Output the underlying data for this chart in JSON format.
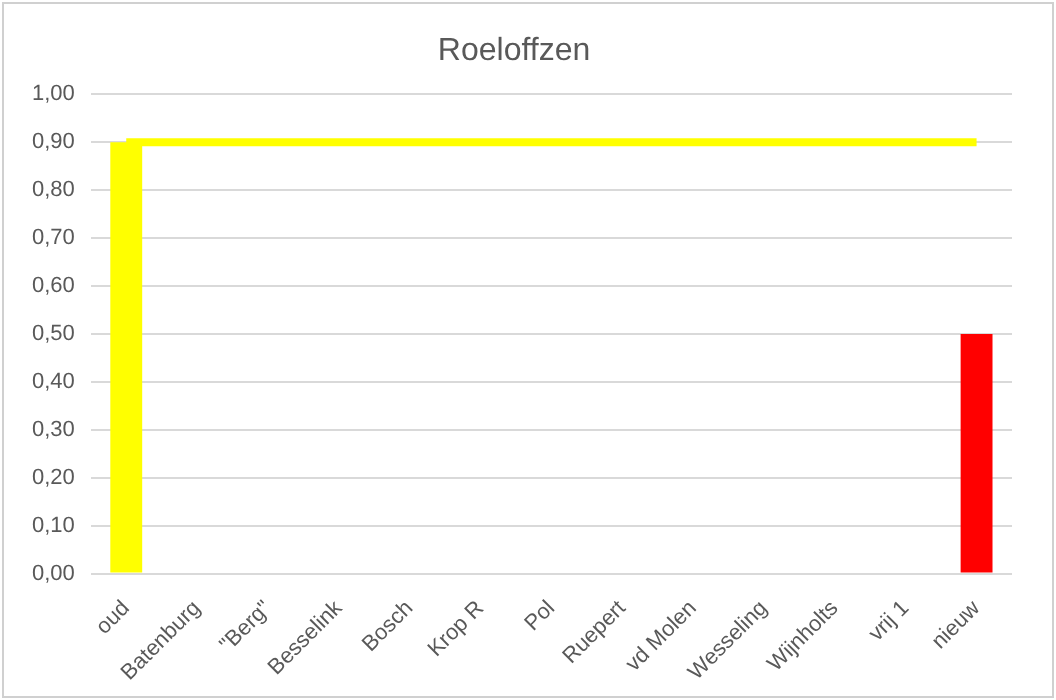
{
  "chart_data": {
    "type": "bar",
    "title": "Roeloffzen",
    "categories": [
      "oud",
      "Batenburg",
      "\"Berg\"",
      "Besselink",
      "Bosch",
      "Krop R",
      "Pol",
      "Ruepert",
      "vd Molen",
      "Wesseling",
      "Wijnholts",
      "vrij 1",
      "nieuw"
    ],
    "series": [
      {
        "colors": [
          "#ffff00",
          null,
          null,
          null,
          null,
          null,
          null,
          null,
          null,
          null,
          null,
          null,
          "#ff0000"
        ],
        "values": [
          0.9,
          null,
          null,
          null,
          null,
          null,
          null,
          null,
          null,
          null,
          null,
          null,
          0.5
        ]
      },
      {
        "type": "line",
        "color": "#ffff00",
        "values": [
          0.9,
          0.9,
          0.9,
          0.9,
          0.9,
          0.9,
          0.9,
          0.9,
          0.9,
          0.9,
          0.9,
          0.9,
          0.9
        ]
      }
    ],
    "ylim": [
      0,
      1
    ],
    "yticks": [
      {
        "value": 0,
        "label": "0,00"
      },
      {
        "value": 0.1,
        "label": "0,10"
      },
      {
        "value": 0.2,
        "label": "0,20"
      },
      {
        "value": 0.3,
        "label": "0,30"
      },
      {
        "value": 0.4,
        "label": "0,40"
      },
      {
        "value": 0.5,
        "label": "0,50"
      },
      {
        "value": 0.6,
        "label": "0,60"
      },
      {
        "value": 0.7,
        "label": "0,70"
      },
      {
        "value": 0.8,
        "label": "0,80"
      },
      {
        "value": 0.9,
        "label": "0,90"
      },
      {
        "value": 1,
        "label": "1,00"
      }
    ],
    "grid": "y",
    "legend": false,
    "marker": "none"
  }
}
